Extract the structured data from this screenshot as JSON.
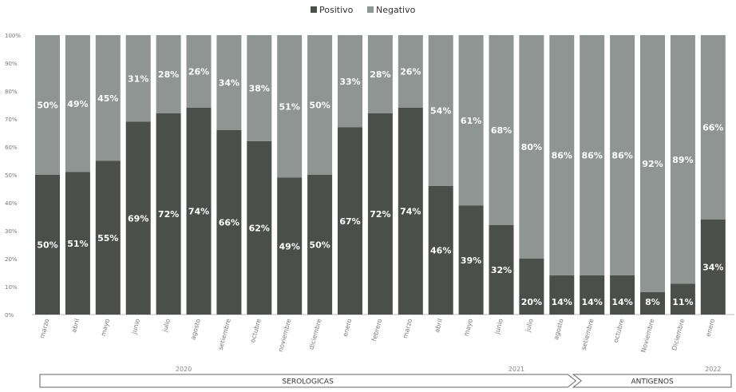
{
  "legend": {
    "positive_label": "Positivo",
    "negative_label": "Negativo"
  },
  "colors": {
    "positive": "#4a4f4b",
    "negative": "#8f9592",
    "background": "#ffffff"
  },
  "chart_data": {
    "type": "bar",
    "stacked": true,
    "percent_scale": true,
    "categories": [
      "marzo",
      "abril",
      "mayo",
      "junio",
      "julio",
      "agosto",
      "setiembre",
      "octubre",
      "noviembre",
      "diciembre",
      "enero",
      "febrero",
      "marzo",
      "abril",
      "mayo",
      "junio",
      "julio",
      "agosto",
      "setiembre",
      "octubre",
      "Noviembre",
      "Diciembre",
      "enero"
    ],
    "series": [
      {
        "name": "Positivo",
        "values": [
          50,
          51,
          55,
          69,
          72,
          74,
          66,
          62,
          49,
          50,
          67,
          72,
          74,
          46,
          39,
          32,
          20,
          14,
          14,
          14,
          8,
          11,
          34
        ]
      },
      {
        "name": "Negativo",
        "values": [
          50,
          49,
          45,
          31,
          28,
          26,
          34,
          38,
          51,
          50,
          33,
          28,
          26,
          54,
          61,
          68,
          80,
          86,
          86,
          86,
          92,
          89,
          66
        ]
      }
    ],
    "data_labels": {
      "positive": [
        "50%",
        "51%",
        "55%",
        "69%",
        "72%",
        "74%",
        "66%",
        "62%",
        "49%",
        "50%",
        "67%",
        "72%",
        "74%",
        "46%",
        "39%",
        "32%",
        "20%",
        "14%",
        "14%",
        "14%",
        "8%",
        "11%",
        "34%"
      ],
      "negative": [
        "50%",
        "49%",
        "45%",
        "31%",
        "28%",
        "26%",
        "34%",
        "38%",
        "51%",
        "50%",
        "33%",
        "28%",
        "26%",
        "54%",
        "61%",
        "68%",
        "80%",
        "86%",
        "86%",
        "86%",
        "92%",
        "89%",
        "66%"
      ]
    },
    "ylim": [
      0,
      100
    ],
    "y_ticks": [
      "0%",
      "10%",
      "20%",
      "30%",
      "40%",
      "50%",
      "60%",
      "70%",
      "80%",
      "90%",
      "100%"
    ],
    "year_labels": [
      {
        "text": "2020",
        "from": 0,
        "to": 9
      },
      {
        "text": "2021",
        "from": 10,
        "to": 21
      },
      {
        "text": "2022",
        "from": 22,
        "to": 22
      }
    ],
    "banners": [
      {
        "text": "SEROLOGICAS",
        "from": 0,
        "to": 17
      },
      {
        "text": "ANTIGENOS",
        "from": 18,
        "to": 22
      }
    ],
    "legend_position": "top-center",
    "grid": false
  }
}
